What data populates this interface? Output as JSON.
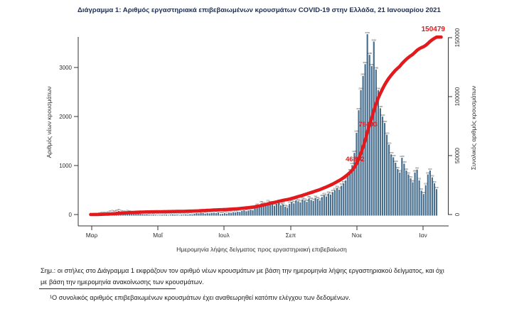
{
  "title": "Διάγραμμα 1: Αριθμός εργαστηριακά επιβεβαιωμένων κρουσμάτων COVID-19 στην Ελλάδα, 21 Ιανουαρίου 2021",
  "chart_data": {
    "type": "bar",
    "combo": "daily bars + cumulative line (dual axis)",
    "title": "Διάγραμμα 1: Αριθμός εργαστηριακά επιβεβαιωμένων κρουσμάτων COVID-19 στην Ελλάδα, 21 Ιανουαρίου 2021",
    "xlabel": "Ημερομηνία λήψης δείγματος προς εργαστηριακή επιβεβαίωση",
    "ylabel_left": "Αριθμός νέων κρουσμάτων",
    "ylabel_right": "Συνολικός αριθμός κρουσμάτων",
    "x_tick_labels": [
      "Μαρ",
      "Μαΐ",
      "Ιουλ",
      "Σεπ",
      "Νοε",
      "Ιαν"
    ],
    "y_left_ticks": [
      0,
      1000,
      2000,
      3000
    ],
    "y_right_ticks": [
      0,
      50000,
      100000,
      150000
    ],
    "y_left_range": [
      0,
      3700
    ],
    "y_right_range": [
      0,
      160000
    ],
    "grid": false,
    "legend": "none",
    "bar_color": "#4a7090",
    "line_color": "#e21a1d",
    "annotation_color": "#e21a1d",
    "daily_new_cases": [
      5,
      8,
      10,
      15,
      20,
      30,
      35,
      30,
      40,
      60,
      70,
      60,
      80,
      95,
      70,
      60,
      55,
      70,
      65,
      50,
      45,
      55,
      40,
      35,
      30,
      25,
      30,
      20,
      15,
      20,
      15,
      10,
      12,
      18,
      15,
      20,
      10,
      15,
      25,
      20,
      15,
      10,
      20,
      15,
      25,
      20,
      30,
      25,
      40,
      50,
      45,
      60,
      55,
      40,
      50,
      45,
      55,
      60,
      50,
      65,
      30,
      35,
      50,
      40,
      60,
      55,
      70,
      65,
      80,
      75,
      100,
      110,
      90,
      105,
      120,
      110,
      150,
      200,
      170,
      250,
      230,
      210,
      270,
      250,
      230,
      200,
      240,
      260,
      210,
      230,
      180,
      160,
      240,
      280,
      250,
      310,
      290,
      270,
      330,
      310,
      280,
      350,
      320,
      300,
      360,
      340,
      310,
      380,
      420,
      390,
      450,
      430,
      480,
      520,
      560,
      530,
      610,
      660,
      720,
      810,
      900,
      1030,
      1280,
      1690,
      2150,
      2560,
      2850,
      3090,
      3700,
      3280,
      3050,
      3550,
      2980,
      2560,
      2190,
      2020,
      1890,
      1650,
      1450,
      1250,
      1190,
      1080,
      950,
      880,
      1180,
      1060,
      920,
      840,
      760,
      680,
      880,
      940,
      720,
      510,
      440,
      620,
      840,
      920,
      780,
      660,
      540
    ],
    "cumulative_annotations": [
      {
        "label": "46892",
        "value": 46892
      },
      {
        "label": "76403",
        "value": 76403
      }
    ],
    "final_total_label": "150479",
    "final_total_value": 150479
  },
  "footnotes": {
    "note_line1": "Σημ.: οι στήλες στο Διάγραμμα 1 εκφράζουν τον αριθμό νέων κρουσμάτων με βάση την ημερομηνία λήψης εργαστηριακού δείγματος, και όχι",
    "note_line2": "με βάση την ημερομηνία ανακοίνωσης των κρουσμάτων.",
    "footnote1": "¹Ο συνολικός αριθμός επιβεβαιωμένων κρουσμάτων έχει αναθεωρηθεί κατόπιν ελέγχου των δεδομένων."
  }
}
